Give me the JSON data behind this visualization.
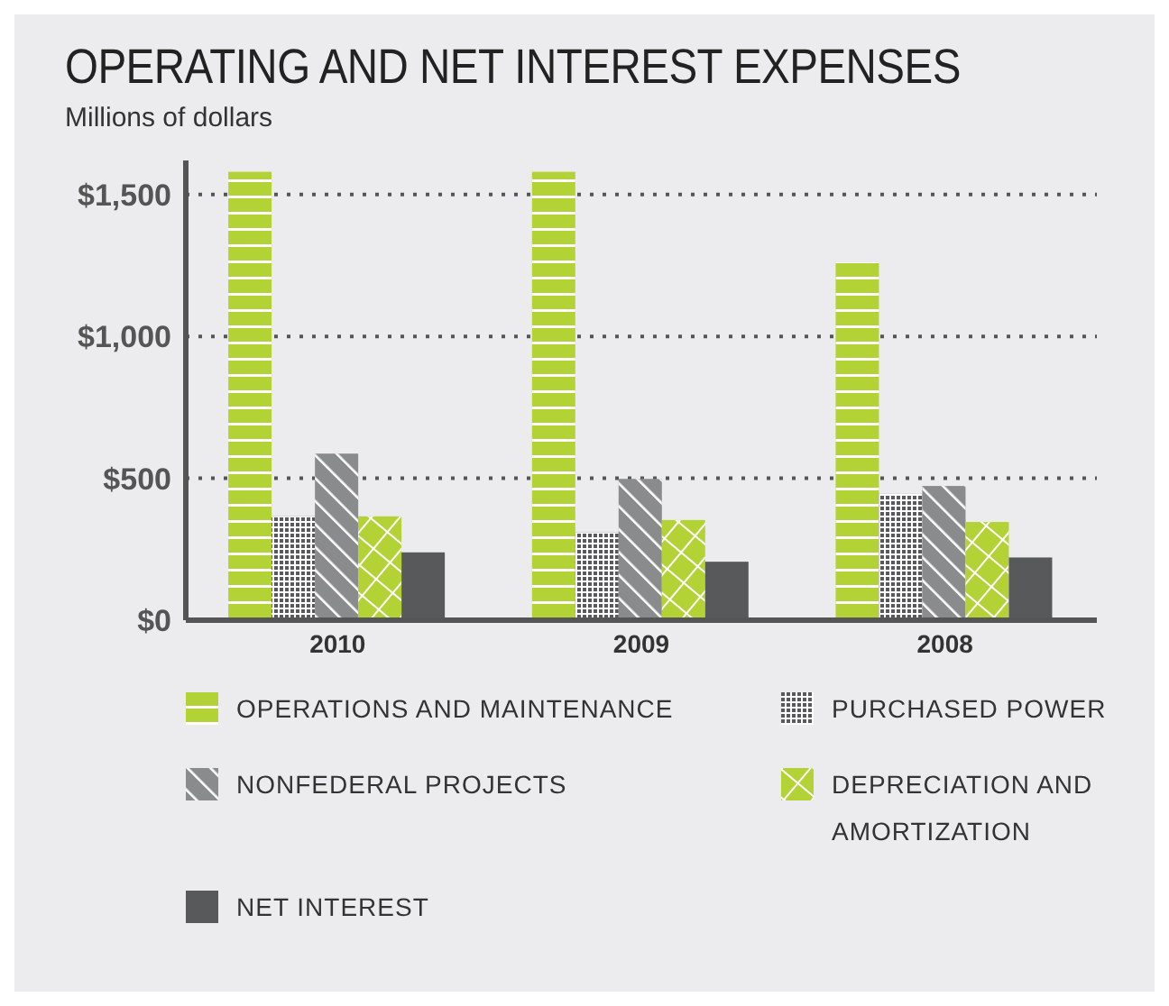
{
  "chart_data": {
    "type": "bar",
    "title": "OPERATING AND NET INTEREST EXPENSES",
    "subtitle": "Millions of dollars",
    "categories": [
      "2010",
      "2009",
      "2008"
    ],
    "series": [
      {
        "name": "OPERATIONS AND MAINTENANCE",
        "color": "#b2d235",
        "values": [
          1580,
          1580,
          1261
        ]
      },
      {
        "name": "PURCHASED POWER",
        "color": "#58595b",
        "values": [
          366,
          310,
          445
        ]
      },
      {
        "name": "NONFEDERAL PROJECTS",
        "color": "#8a8b8d",
        "values": [
          587,
          498,
          473
        ]
      },
      {
        "name": "DEPRECIATION AND AMORTIZATION",
        "color": "#b2d235",
        "values": [
          366,
          353,
          346
        ]
      },
      {
        "name": "NET INTEREST",
        "color": "#58595b",
        "values": [
          239,
          206,
          221
        ]
      }
    ],
    "ylim": [
      0,
      1620
    ],
    "yticks": [
      {
        "value": 0,
        "label": "$0"
      },
      {
        "value": 500,
        "label": "$500"
      },
      {
        "value": 1000,
        "label": "$1,000"
      },
      {
        "value": 1500,
        "label": "$1,500"
      }
    ],
    "grid": "y",
    "legend": "bottom"
  }
}
